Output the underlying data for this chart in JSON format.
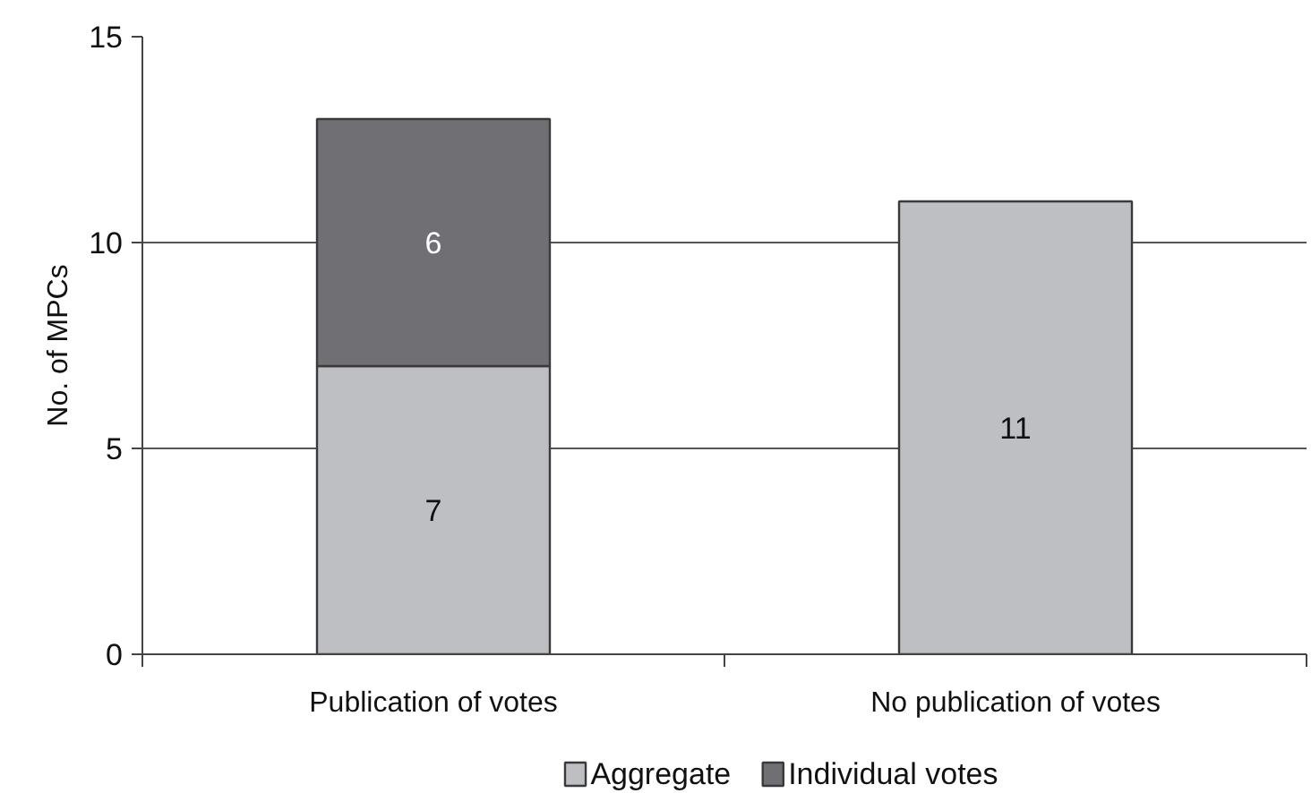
{
  "chart_data": {
    "type": "bar",
    "ylabel": "No. of MPCs",
    "categories": [
      "Publication of votes",
      "No publication of votes"
    ],
    "series": [
      {
        "name": "Aggregate",
        "color": "#bebfc3",
        "values": [
          7,
          11
        ]
      },
      {
        "name": "Individual votes",
        "color": "#707074",
        "values": [
          6,
          null
        ]
      }
    ],
    "stacked": true,
    "ylim": [
      0,
      15
    ],
    "yticks": [
      0,
      5,
      10,
      15
    ],
    "grid": "y",
    "legend": "bottom",
    "data_labels": true
  }
}
